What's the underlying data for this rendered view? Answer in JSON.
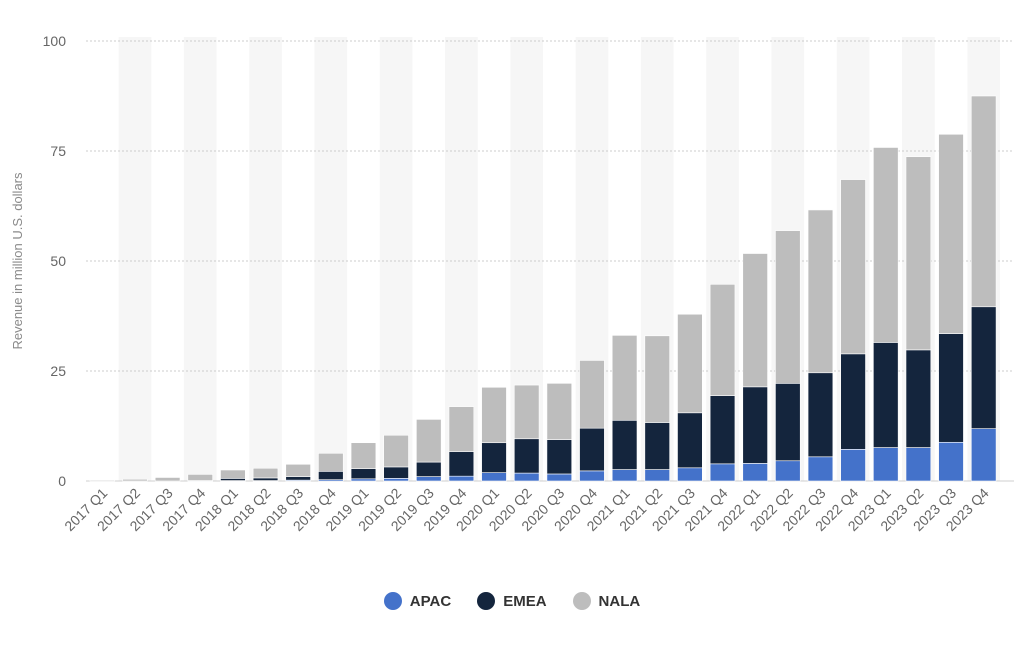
{
  "chart_data": {
    "type": "bar",
    "stacked": true,
    "ylabel": "Revenue in million U.S. dollars",
    "ylim": [
      0,
      100
    ],
    "yticks": [
      0,
      25,
      50,
      75,
      100
    ],
    "grid": true,
    "legend_position": "bottom-center",
    "categories": [
      "2017 Q1",
      "2017 Q2",
      "2017 Q3",
      "2017 Q4",
      "2018 Q1",
      "2018 Q2",
      "2018 Q3",
      "2018 Q4",
      "2019 Q1",
      "2019 Q2",
      "2019 Q3",
      "2019 Q4",
      "2020 Q1",
      "2020 Q2",
      "2020 Q3",
      "2020 Q4",
      "2021 Q1",
      "2021 Q2",
      "2021 Q3",
      "2021 Q4",
      "2022 Q1",
      "2022 Q2",
      "2022 Q3",
      "2022 Q4",
      "2023 Q1",
      "2023 Q2",
      "2023 Q3",
      "2023 Q4"
    ],
    "series": [
      {
        "name": "APAC",
        "color": "#4472ca",
        "values": [
          0,
          0,
          0,
          0,
          0.1,
          0.1,
          0.2,
          0.3,
          0.5,
          0.6,
          1.0,
          1.1,
          1.9,
          1.8,
          1.6,
          2.3,
          2.6,
          2.6,
          3.0,
          3.9,
          4.0,
          4.6,
          5.5,
          7.2,
          7.6,
          7.6,
          8.8,
          11.9
        ]
      },
      {
        "name": "EMEA",
        "color": "#14253d",
        "values": [
          0,
          0,
          0,
          0.1,
          0.5,
          0.6,
          0.8,
          1.9,
          2.3,
          2.6,
          3.3,
          5.6,
          6.8,
          7.8,
          7.8,
          9.7,
          11.2,
          10.7,
          12.5,
          15.5,
          17.4,
          17.6,
          19.1,
          21.7,
          23.9,
          22.2,
          24.7,
          27.7
        ]
      },
      {
        "name": "NALA",
        "color": "#bdbdbd",
        "values": [
          0.2,
          0.4,
          0.8,
          1.4,
          1.9,
          2.2,
          2.8,
          4.1,
          5.9,
          7.2,
          9.7,
          10.2,
          12.6,
          12.2,
          12.8,
          15.4,
          19.3,
          19.7,
          22.4,
          25.3,
          30.3,
          34.7,
          37.0,
          39.6,
          44.3,
          43.9,
          45.3,
          47.9
        ]
      }
    ]
  }
}
